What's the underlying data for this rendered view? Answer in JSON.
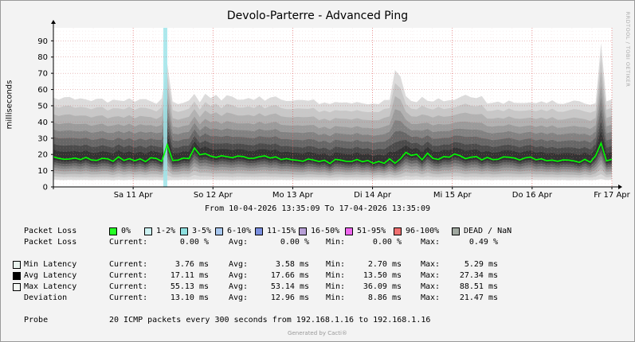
{
  "chart_data": {
    "type": "area",
    "title": "Devolo-Parterre - Advanced Ping",
    "ylabel": "milliseconds",
    "ylim": [
      0,
      98
    ],
    "yticks": [
      0,
      10,
      20,
      30,
      40,
      50,
      60,
      70,
      80,
      90
    ],
    "xlim": [
      "10-04-2026 13:35:09",
      "17-04-2026 13:35:09"
    ],
    "xtick_labels": [
      "Sa 11 Apr",
      "So 12 Apr",
      "Mo 13 Apr",
      "Di 14 Apr",
      "Mi 15 Apr",
      "Do 16 Apr",
      "Fr 17 Apr"
    ],
    "grid": true,
    "series": [
      {
        "name": "Avg Latency",
        "color": "#00ff00",
        "values": [
          18.5,
          17.6,
          17.0,
          17.2,
          17.8,
          16.8,
          18.2,
          16.6,
          16.3,
          17.6,
          17.3,
          15.8,
          18.5,
          16.3,
          17.4,
          16.1,
          17.3,
          15.6,
          18.0,
          17.5,
          15.8,
          26.0,
          16.3,
          16.5,
          17.8,
          17.4,
          24.0,
          19.8,
          20.5,
          19.0,
          18.2,
          19.2,
          18.6,
          18.0,
          19.0,
          18.7,
          17.6,
          17.7,
          18.6,
          19.1,
          17.8,
          18.5,
          16.8,
          17.4,
          16.7,
          16.4,
          15.8,
          17.2,
          16.5,
          15.7,
          16.4,
          14.4,
          17.0,
          16.5,
          15.8,
          15.7,
          16.9,
          15.5,
          16.3,
          14.5,
          15.7,
          14.5,
          17.3,
          14.6,
          17.3,
          21.3,
          19.4,
          20.1,
          16.7,
          20.8,
          17.6,
          16.9,
          18.7,
          18.3,
          20.3,
          19.2,
          17.4,
          18.3,
          18.7,
          16.6,
          18.2,
          16.8,
          17.0,
          18.5,
          18.3,
          17.8,
          16.6,
          17.9,
          18.4,
          16.7,
          17.3,
          16.1,
          16.5,
          15.8,
          16.6,
          16.5,
          16.0,
          15.1,
          17.0,
          15.2,
          19.2,
          27.0,
          16.0,
          17.0
        ]
      },
      {
        "name": "Max Latency",
        "values": [
          55.0,
          53.8,
          55.2,
          55.4,
          53.8,
          54.6,
          53.9,
          52.9,
          54.3,
          54.4,
          51.9,
          53.8,
          53.3,
          52.9,
          54.6,
          52.5,
          54.0,
          54.1,
          52.7,
          51.2,
          54.5,
          76.0,
          52.5,
          51.0,
          51.8,
          53.2,
          57.3,
          52.1,
          57.4,
          54.8,
          56.7,
          53.2,
          56.5,
          55.6,
          53.7,
          53.8,
          54.8,
          53.6,
          55.8,
          53.1,
          55.1,
          55.7,
          53.8,
          52.9,
          53.0,
          53.6,
          53.5,
          53.1,
          53.9,
          51.0,
          52.0,
          51.1,
          52.3,
          51.9,
          52.1,
          51.4,
          52.3,
          51.5,
          50.9,
          51.3,
          51.0,
          53.5,
          53.6,
          72.0,
          68.0,
          56.0,
          52.9,
          52.2,
          55.5,
          53.0,
          52.6,
          54.6,
          52.7,
          53.4,
          53.6,
          55.3,
          56.8,
          55.2,
          54.7,
          56.0,
          51.4,
          51.8,
          52.6,
          51.2,
          53.2,
          51.8,
          51.7,
          51.7,
          52.1,
          51.6,
          52.7,
          51.6,
          53.4,
          51.3,
          51.1,
          52.1,
          53.2,
          52.8,
          51.3,
          50.6,
          51.6,
          88.5,
          52.7,
          54.0
        ]
      },
      {
        "name": "Min Latency",
        "values": [
          3.76,
          3.6,
          3.5,
          3.7,
          3.5,
          3.6,
          3.6,
          3.5,
          3.7,
          3.5,
          3.6,
          3.4,
          3.6,
          3.5,
          3.7,
          3.6,
          3.5,
          3.6,
          3.4,
          3.6,
          3.5,
          2.9,
          3.6,
          3.5,
          3.7,
          3.5,
          3.6,
          3.6,
          3.5,
          3.7,
          3.6,
          3.5,
          3.6,
          3.4,
          3.6,
          3.5,
          3.7,
          3.6,
          3.5,
          3.6,
          3.6,
          3.5,
          3.7,
          3.5,
          3.6,
          3.4,
          3.6,
          3.5,
          3.7,
          3.6,
          3.5,
          3.6,
          3.4,
          3.6,
          3.5,
          3.7,
          3.5,
          3.6,
          3.6,
          3.5,
          3.7,
          3.6,
          3.5,
          3.6,
          3.4,
          3.6,
          3.5,
          3.7,
          3.6,
          3.5,
          3.6,
          3.6,
          3.5,
          3.7,
          3.5,
          3.6,
          3.4,
          3.6,
          3.5,
          3.7,
          3.6,
          3.5,
          3.6,
          3.4,
          3.6,
          3.5,
          3.7,
          3.5,
          3.6,
          3.6,
          3.5,
          3.7,
          3.6,
          3.5,
          3.6,
          3.4,
          3.6,
          3.5,
          3.7,
          3.6,
          3.5,
          3.6,
          3.6,
          3.76
        ]
      }
    ]
  },
  "range_text": "From 10-04-2026 13:35:09 To 17-04-2026 13:35:09",
  "watermark": "RRDTOOL / TOBI OETIKER",
  "footer": "Generated by Cacti®",
  "loss_legend": {
    "label": "Packet Loss",
    "items": [
      {
        "label": "0%",
        "color": "#26ff26"
      },
      {
        "label": "1-2%",
        "color": "#ccf2f2"
      },
      {
        "label": "3-5%",
        "color": "#8ee0e0"
      },
      {
        "label": "6-10%",
        "color": "#a8c8f0"
      },
      {
        "label": "11-15%",
        "color": "#7a8fe0"
      },
      {
        "label": "16-50%",
        "color": "#b79fd6"
      },
      {
        "label": "51-95%",
        "color": "#ee66ee"
      },
      {
        "label": "96-100%",
        "color": "#f07070"
      },
      {
        "label": "DEAD / NaN",
        "color": "#a0a8a0"
      }
    ]
  },
  "stats": {
    "col_current": "Current:",
    "col_avg": "Avg:",
    "col_min": "Min:",
    "col_max": "Max:",
    "rows": [
      {
        "label": "Packet Loss",
        "swatch": "",
        "current": "0.00 %",
        "avg": "0.00 %",
        "min": "0.00 %",
        "max": "0.49 %"
      },
      {
        "label": "Min Latency",
        "swatch": "#e9f3ee",
        "current": "3.76 ms",
        "avg": "3.58 ms",
        "min": "2.70 ms",
        "max": "5.29 ms"
      },
      {
        "label": "Avg Latency",
        "swatch": "#000000",
        "current": "17.11 ms",
        "avg": "17.66 ms",
        "min": "13.50 ms",
        "max": "27.34 ms"
      },
      {
        "label": "Max Latency",
        "swatch": "#f4f8f4",
        "current": "55.13 ms",
        "avg": "53.14 ms",
        "min": "36.09 ms",
        "max": "88.51 ms"
      },
      {
        "label": "Deviation",
        "swatch": "",
        "current": "13.10 ms",
        "avg": "12.96 ms",
        "min": "8.86 ms",
        "max": "21.47 ms"
      }
    ]
  },
  "probe": {
    "label": "Probe",
    "text": "20 ICMP packets every 300 seconds from 192.168.1.16 to 192.168.1.16"
  }
}
